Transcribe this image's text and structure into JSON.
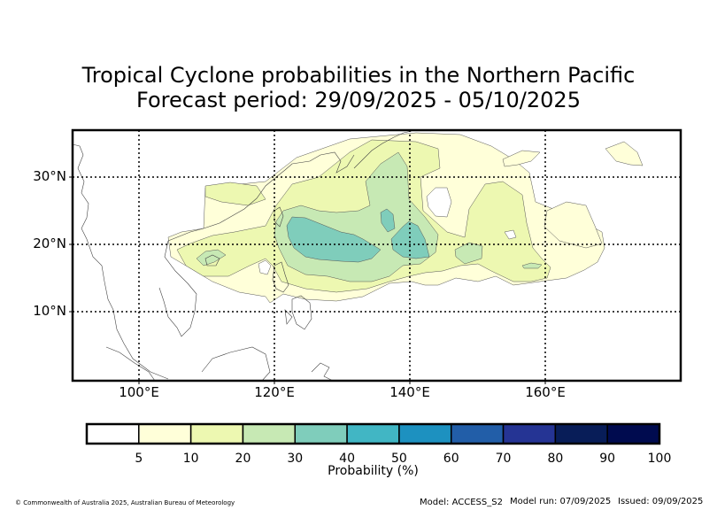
{
  "title_line1": "Tropical Cyclone probabilities in the Northern Pacific",
  "title_line2": "Forecast period: 29/09/2025 - 05/10/2025",
  "map": {
    "lon_range": [
      90,
      180
    ],
    "lat_range": [
      0,
      37
    ],
    "lat_labels": [
      "30°N",
      "20°N",
      "10°N"
    ],
    "lon_labels": [
      "100°E",
      "120°E",
      "140°E",
      "160°E"
    ],
    "gridlines": "dotted"
  },
  "colorbar": {
    "title": "Probability (%)",
    "ticks": [
      "5",
      "10",
      "20",
      "30",
      "40",
      "50",
      "60",
      "70",
      "80",
      "90",
      "100"
    ],
    "colors": [
      "#ffffff",
      "#ffffd9",
      "#edf8b1",
      "#c7e9b4",
      "#7fcdbb",
      "#41b6c4",
      "#1d91c0",
      "#225ea8",
      "#253494",
      "#081d58",
      "#000b4f"
    ]
  },
  "footer": {
    "copyright": "© Commonwealth of Australia 2025, Australian Bureau of Meteorology",
    "model": "Model: ACCESS_S2",
    "run": "Model run: 07/09/2025",
    "issued": "Issued: 09/09/2025"
  }
}
